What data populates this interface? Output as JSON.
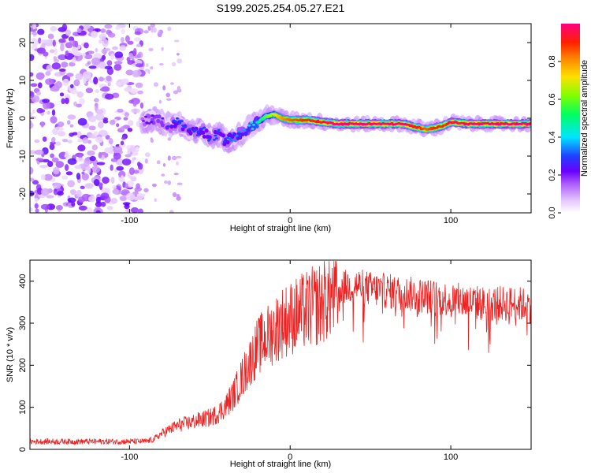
{
  "title": "S199.2025.254.05.27.E21",
  "chart_data": [
    {
      "type": "heatmap",
      "name": "spectrogram",
      "xlabel": "Height of straight line (km)",
      "ylabel": "Frequency (Hz)",
      "xlim": [
        -162,
        150
      ],
      "ylim": [
        -25,
        25
      ],
      "x_ticks": [
        -100,
        0,
        100
      ],
      "y_ticks": [
        -20,
        -10,
        0,
        10,
        20
      ],
      "colorbar": {
        "label": "Normalized spectral amplitude",
        "range": [
          0,
          1
        ],
        "ticks": [
          "0.0",
          "0.2",
          "0.4",
          "0.6",
          "0.8"
        ],
        "colors": [
          "#ffffff",
          "#e6ccff",
          "#7a00ff",
          "#2040ff",
          "#00e5ff",
          "#00ff60",
          "#c8ff00",
          "#ffd000",
          "#ff6000",
          "#ff0060"
        ]
      },
      "noise_region": {
        "x": [
          -162,
          -92
        ],
        "y": [
          -25,
          25
        ]
      },
      "signal_track": {
        "x": [
          -92,
          -85,
          -80,
          -75,
          -70,
          -65,
          -60,
          -55,
          -50,
          -45,
          -40,
          -35,
          -30,
          -25,
          -20,
          -15,
          -10,
          -5,
          0,
          10,
          20,
          30,
          40,
          50,
          60,
          70,
          75,
          80,
          85,
          90,
          95,
          100,
          110,
          120,
          130,
          140,
          150
        ],
        "y": [
          -1,
          0,
          -1,
          -2,
          -1,
          -3,
          -4,
          -3,
          -5,
          -4,
          -6,
          -5,
          -4,
          -2,
          -1,
          0.5,
          1,
          0,
          -0.5,
          -0.5,
          -1,
          -1.5,
          -1.5,
          -1.5,
          -1.5,
          -1.5,
          -2,
          -2.5,
          -3,
          -2.5,
          -2,
          -1,
          -1.5,
          -1.5,
          -1.5,
          -1.5,
          -1.5
        ],
        "amplitude": [
          0.2,
          0.25,
          0.25,
          0.3,
          0.3,
          0.3,
          0.3,
          0.3,
          0.3,
          0.3,
          0.3,
          0.35,
          0.35,
          0.4,
          0.45,
          0.6,
          0.7,
          0.8,
          0.85,
          0.9,
          0.95,
          1.0,
          1.0,
          1.0,
          1.0,
          1.0,
          0.95,
          0.9,
          0.85,
          0.9,
          0.9,
          0.95,
          1.0,
          1.0,
          1.0,
          1.0,
          1.0
        ]
      }
    },
    {
      "type": "line",
      "name": "snr",
      "xlabel": "Height of straight line (km)",
      "ylabel": "SNR (10 * v/v)",
      "xlim": [
        -162,
        150
      ],
      "ylim": [
        0,
        450
      ],
      "x_ticks": [
        -100,
        0,
        100
      ],
      "y_ticks": [
        0,
        100,
        200,
        300,
        400
      ],
      "color": "#ee2020",
      "series": [
        {
          "name": "SNR",
          "x": [
            -162,
            -140,
            -120,
            -100,
            -90,
            -85,
            -80,
            -75,
            -70,
            -65,
            -60,
            -55,
            -50,
            -45,
            -40,
            -35,
            -30,
            -25,
            -20,
            -15,
            -10,
            -5,
            0,
            5,
            10,
            15,
            20,
            25,
            30,
            35,
            40,
            50,
            60,
            70,
            80,
            90,
            100,
            110,
            120,
            130,
            140,
            150
          ],
          "y": [
            20,
            20,
            20,
            20,
            20,
            25,
            40,
            50,
            60,
            65,
            70,
            75,
            80,
            90,
            110,
            140,
            180,
            220,
            260,
            280,
            300,
            320,
            330,
            340,
            350,
            360,
            370,
            385,
            390,
            395,
            400,
            390,
            385,
            380,
            375,
            370,
            365,
            360,
            355,
            355,
            355,
            350
          ]
        }
      ]
    }
  ]
}
